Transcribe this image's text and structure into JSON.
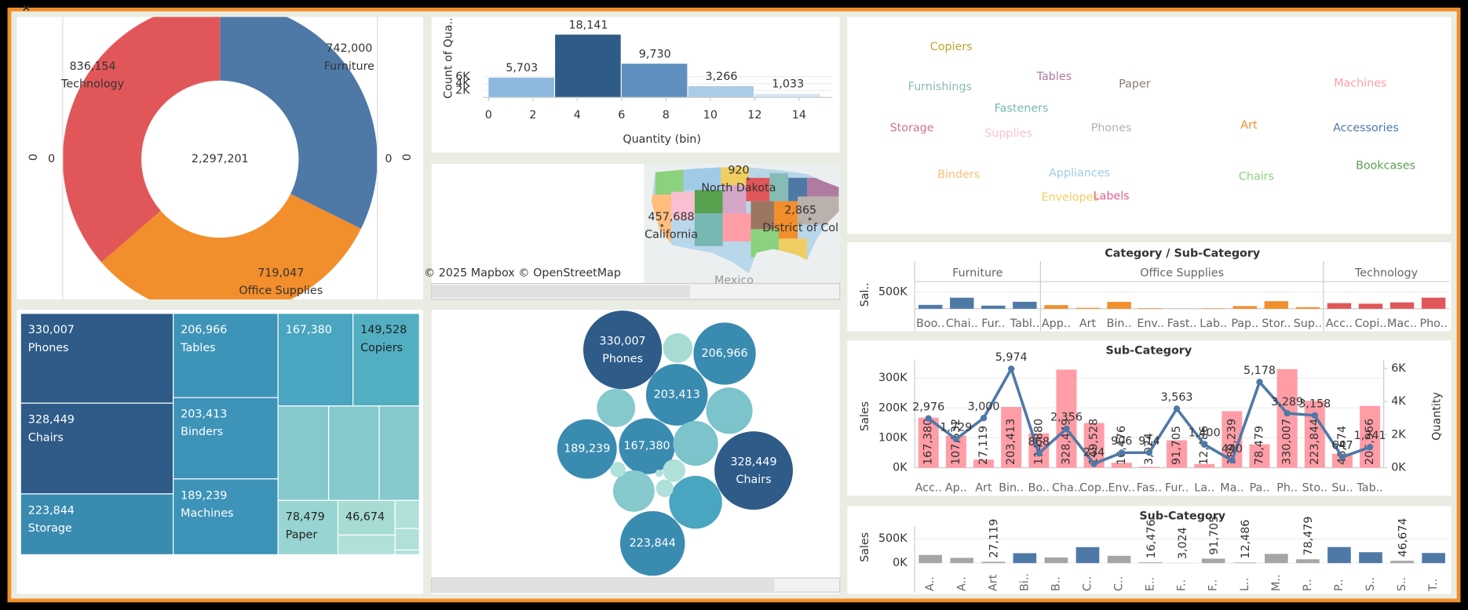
{
  "chart_data": [
    {
      "type": "pie",
      "donut": true,
      "categories": [
        "Furniture",
        "Office Supplies",
        "Technology"
      ],
      "values": [
        742000,
        719047,
        836154
      ],
      "value_labels": [
        "742,000",
        "719,047",
        "836,154"
      ],
      "colors": [
        "#4e79a7",
        "#f28e2b",
        "#e15759"
      ],
      "center_label": "2,297,201",
      "side_labels": [
        "0",
        "0",
        "0",
        "0"
      ]
    },
    {
      "type": "histogram",
      "y_label": "Count of Qua..",
      "x_label": "Quantity (bin)",
      "bins": [
        0,
        3,
        6,
        9,
        12,
        15
      ],
      "values": [
        5703,
        18141,
        9730,
        3266,
        1033
      ],
      "value_labels": [
        "5,703",
        "18,141",
        "9,730",
        "3,266",
        "1,033"
      ],
      "colors": [
        "#8cb8dd",
        "#2e5b88",
        "#5f8fbe",
        "#a9cce8",
        "#d6e6f3"
      ],
      "xlim": [
        -0.5,
        15.5
      ],
      "xticks": [
        0,
        2,
        4,
        6,
        8,
        10,
        12,
        14
      ],
      "ylim": [
        0,
        20000
      ],
      "yticks": [
        {
          "value": 2000,
          "label": "2K"
        },
        {
          "value": 4000,
          "label": "4K"
        },
        {
          "value": 6000,
          "label": "6K"
        }
      ],
      "grid": true
    },
    {
      "type": "map",
      "names": [
        "North Dakota",
        "California",
        "District of Col"
      ],
      "values": [
        920,
        457688,
        2865
      ],
      "value_labels": [
        "920",
        "457,688",
        "2,865"
      ],
      "attribution": "© 2025 Mapbox © OpenStreetMap",
      "place_label": "Mexico"
    },
    {
      "type": "wordcloud",
      "words": [
        "Copiers",
        "Tables",
        "Paper",
        "Furnishings",
        "Machines",
        "Fasteners",
        "Storage",
        "Supplies",
        "Phones",
        "Art",
        "Accessories",
        "Binders",
        "Appliances",
        "Chairs",
        "Bookcases",
        "Envelopes",
        "Labels"
      ],
      "colors": [
        "#bfa334",
        "#b07aa1",
        "#8c7b74",
        "#86bcb6",
        "#ff9da7",
        "#76b7b2",
        "#d37295",
        "#fabfd2",
        "#bab0ac",
        "#f28e2b",
        "#4e79a7",
        "#ffbe7d",
        "#a0cbe8",
        "#8cd17d",
        "#59a14f",
        "#f1ce63",
        "#e35e8a"
      ]
    },
    {
      "type": "grouped-bar",
      "title": "Category / Sub-Category",
      "y_label": "Sal..",
      "groups": [
        {
          "name": "Furniture",
          "color": "#4e79a7",
          "categories": [
            "Boo..",
            "Chai..",
            "Fur..",
            "Tabl.."
          ],
          "values": [
            114880,
            328449,
            91705,
            206966
          ]
        },
        {
          "name": "Office Supplies",
          "color": "#f28e2b",
          "categories": [
            "App..",
            "Art",
            "Bin..",
            "Env..",
            "Fast..",
            "Lab..",
            "Pap..",
            "Stor..",
            "Sup.."
          ],
          "values": [
            107532,
            27119,
            203413,
            16476,
            3024,
            12486,
            78479,
            223844,
            46674
          ]
        },
        {
          "name": "Technology",
          "color": "#e15759",
          "categories": [
            "Acc..",
            "Copi..",
            "Mac..",
            "Pho.."
          ],
          "values": [
            167380,
            149528,
            189239,
            330007
          ]
        }
      ],
      "ylim": [
        0,
        750000
      ],
      "yticks": [
        {
          "value": 500000,
          "label": "500K"
        }
      ]
    },
    {
      "type": "combo",
      "title": "Sub-Category",
      "y_label": "Sales",
      "y2_label": "Quantity",
      "categories": [
        "Acc..",
        "Ap..",
        "Art",
        "Bin..",
        "Bo..",
        "Cha..",
        "Cop..",
        "Env..",
        "Fas..",
        "Fur..",
        "La..",
        "Ma..",
        "Pa..",
        "Ph..",
        "Sto..",
        "Su..",
        "Tab.."
      ],
      "series": [
        {
          "color": "#ff9da7",
          "values": [
            167380,
            107532,
            27119,
            203413,
            114880,
            328449,
            149528,
            16476,
            3024,
            91705,
            12486,
            189239,
            78479,
            330007,
            223844,
            46674,
            206966
          ],
          "value_labels": [
            "167,380",
            "107,532",
            "27,119",
            "203,413",
            "114,880",
            "328,449",
            "149,528",
            "16,476",
            "3,024",
            "91,705",
            "12,486",
            "189,239",
            "78,479",
            "330,007",
            "223,844",
            "46,674",
            "206,966"
          ]
        },
        {
          "color": "#4e79a7",
          "axis": "y2",
          "values": [
            2976,
            1729,
            3000,
            5974,
            868,
            2356,
            234,
            906,
            914,
            3563,
            1400,
            440,
            5178,
            3289,
            3158,
            647,
            1241
          ],
          "value_labels": [
            "2,976",
            "1,729",
            "3,000",
            "5,974",
            "868",
            "2,356",
            "234",
            "906",
            "914",
            "3,563",
            "1,400",
            "440",
            "5,178",
            "3,289",
            "3,158",
            "647",
            "1,241"
          ]
        }
      ],
      "ylim": [
        0,
        360000
      ],
      "yticks": [
        {
          "value": 0,
          "label": "0K"
        },
        {
          "value": 100000,
          "label": "100K"
        },
        {
          "value": 200000,
          "label": "200K"
        },
        {
          "value": 300000,
          "label": "300K"
        }
      ],
      "y2lim": [
        0,
        6500
      ],
      "y2ticks": [
        {
          "value": 0,
          "label": "0K"
        },
        {
          "value": 2000,
          "label": "2K"
        },
        {
          "value": 4000,
          "label": "4K"
        },
        {
          "value": 6000,
          "label": "6K"
        }
      ]
    },
    {
      "type": "bar",
      "title": "Sub-Category",
      "y_label": "Sales",
      "categories": [
        "A..",
        "A..",
        "Art",
        "Bi..",
        "B..",
        "C..",
        "C..",
        "E..",
        "F..",
        "F..",
        "L..",
        "M..",
        "P..",
        "P..",
        "S..",
        "S..",
        "T.."
      ],
      "values": [
        167380,
        107532,
        27119,
        203413,
        114880,
        328449,
        149528,
        16476,
        3024,
        91705,
        12486,
        189239,
        78479,
        330007,
        223844,
        46674,
        206966
      ],
      "value_labels": [
        null,
        null,
        "27,119",
        null,
        null,
        null,
        null,
        "16,476",
        "3,024",
        "91,705",
        "12,486",
        null,
        "78,479",
        null,
        null,
        "46,674",
        null
      ],
      "colors": [
        "#a5a5a5",
        "#a5a5a5",
        "#a5a5a5",
        "#4e79a7",
        "#a5a5a5",
        "#4e79a7",
        "#a5a5a5",
        "#a5a5a5",
        "#a5a5a5",
        "#a5a5a5",
        "#a5a5a5",
        "#a5a5a5",
        "#a5a5a5",
        "#4e79a7",
        "#4e79a7",
        "#a5a5a5",
        "#4e79a7"
      ],
      "ylim": [
        0,
        750000
      ],
      "yticks": [
        {
          "value": 0,
          "label": "0K"
        },
        {
          "value": 500000,
          "label": "500K"
        }
      ]
    },
    {
      "type": "treemap",
      "labels": [
        "Phones",
        "Chairs",
        "Storage",
        "Tables",
        "Binders",
        "Machines",
        null,
        "Copiers",
        null,
        null,
        null,
        "Paper",
        null,
        null,
        null,
        null,
        null
      ],
      "values": [
        330007,
        328449,
        223844,
        206966,
        203413,
        189239,
        167380,
        149528,
        114880,
        107532,
        91705,
        78479,
        46674,
        27119,
        16476,
        12486,
        3024
      ],
      "value_labels": [
        "330,007",
        "328,449",
        "223,844",
        "206,966",
        "203,413",
        "189,239",
        "167,380",
        "149,528",
        null,
        null,
        null,
        "78,479",
        "46,674",
        null,
        null,
        null,
        null
      ],
      "colors": [
        "#2e5b88",
        "#2e5b88",
        "#3a8bb0",
        "#3d93b8",
        "#3d93b8",
        "#3d93b8",
        "#4aa5c0",
        "#52afc2",
        "#86c9cc",
        "#86c9cc",
        "#86c9cc",
        "#98d5d2",
        "#a7dcd5",
        "#b0e0da",
        "#b0e0da",
        "#b0e0da",
        "#b0e0da"
      ]
    },
    {
      "type": "bubble",
      "labels": [
        "Phones",
        null,
        null,
        null,
        null,
        "Chairs",
        null,
        null,
        null,
        null,
        null,
        null,
        null,
        null,
        null,
        null,
        null
      ],
      "values": [
        330007,
        206966,
        203413,
        189239,
        167380,
        328449,
        223844,
        149528,
        114880,
        107532,
        91705,
        78479,
        46674,
        27119,
        16476,
        12486,
        3024
      ],
      "value_labels": [
        "330,007",
        "206,966",
        "203,413",
        "189,239",
        "167,380",
        "328,449",
        "223,844",
        null,
        null,
        null,
        null,
        null,
        null,
        null,
        null,
        null,
        null
      ],
      "colors": [
        "#2e5b88",
        "#3a8bb0",
        "#3a8bb0",
        "#3a8bb0",
        "#3a8bb0",
        "#2e5b88",
        "#3a8bb0",
        "#4aa5c0",
        "#7cc3cc",
        "#7cc3cc",
        "#86c9cc",
        "#86c9cc",
        "#a7dcd5",
        "#b0e0da",
        "#b0e0da",
        "#b0e0da",
        "#b0e0da"
      ]
    }
  ]
}
